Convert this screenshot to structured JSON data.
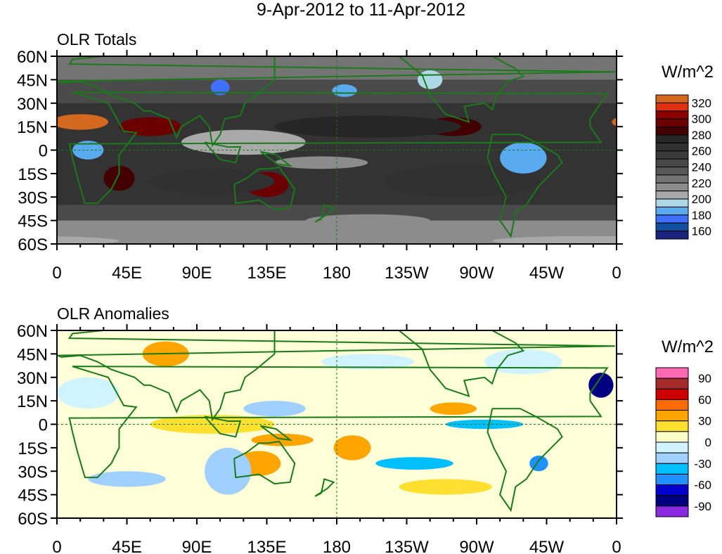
{
  "title": "9-Apr-2012 to 11-Apr-2012",
  "chart_data": [
    {
      "type": "heatmap",
      "title": "OLR Totals",
      "units": "W/m^2",
      "x_ticks": [
        "0",
        "45E",
        "90E",
        "135E",
        "180",
        "135W",
        "90W",
        "45W",
        "0"
      ],
      "y_ticks": [
        "60N",
        "45N",
        "30N",
        "15N",
        "0",
        "15S",
        "30S",
        "45S",
        "60S"
      ],
      "xlim": [
        0,
        360
      ],
      "ylim": [
        -60,
        60
      ],
      "colorbar": {
        "labels": [
          "320",
          "300",
          "280",
          "260",
          "240",
          "220",
          "200",
          "180",
          "160"
        ],
        "levels": [
          320,
          310,
          300,
          290,
          280,
          270,
          260,
          250,
          240,
          230,
          220,
          210,
          200,
          190,
          180,
          170,
          160
        ],
        "colors": [
          "#d2691e",
          "#e03010",
          "#8b0000",
          "#6a0000",
          "#420000",
          "#262626",
          "#303030",
          "#3a3a3a",
          "#484848",
          "#585858",
          "#747474",
          "#8c8c8c",
          "#a9a9a9",
          "#add8e6",
          "#5aaaf0",
          "#4070ff",
          "#10509e",
          "#1a2380"
        ]
      },
      "background": "#4a4a4a",
      "features": [
        {
          "lon": 15,
          "lat": 18,
          "rl": 18,
          "rt": 5,
          "v": 320
        },
        {
          "lon": 60,
          "lat": 15,
          "rl": 20,
          "rt": 6,
          "v": 290
        },
        {
          "lon": 255,
          "lat": 15,
          "rl": 18,
          "rt": 6,
          "v": 285
        },
        {
          "lon": 135,
          "lat": -22,
          "rl": 14,
          "rt": 8,
          "v": 290
        },
        {
          "lon": 40,
          "lat": -18,
          "rl": 10,
          "rt": 8,
          "v": 285
        },
        {
          "lon": 200,
          "lat": 15,
          "rl": 60,
          "rt": 7,
          "v": 270
        },
        {
          "lon": 100,
          "lat": -20,
          "rl": 40,
          "rt": 8,
          "v": 265
        },
        {
          "lon": 260,
          "lat": -20,
          "rl": 50,
          "rt": 10,
          "v": 265
        },
        {
          "lon": 120,
          "lat": 5,
          "rl": 40,
          "rt": 8,
          "v": 205
        },
        {
          "lon": 170,
          "lat": -8,
          "rl": 30,
          "rt": 4,
          "v": 215
        },
        {
          "lon": 300,
          "lat": -5,
          "rl": 15,
          "rt": 10,
          "v": 185
        },
        {
          "lon": 20,
          "lat": 0,
          "rl": 10,
          "rt": 6,
          "v": 180
        },
        {
          "lon": 105,
          "lat": 40,
          "rl": 6,
          "rt": 5,
          "v": 175
        },
        {
          "lon": 185,
          "lat": 38,
          "rl": 8,
          "rt": 4,
          "v": 180
        },
        {
          "lon": 240,
          "lat": 45,
          "rl": 8,
          "rt": 6,
          "v": 190
        },
        {
          "lon": 90,
          "lat": -50,
          "rl": 50,
          "rt": 4,
          "v": 210
        },
        {
          "lon": 200,
          "lat": -45,
          "rl": 40,
          "rt": 4,
          "v": 215
        },
        {
          "lon": 340,
          "lat": -58,
          "rl": 60,
          "rt": 3,
          "v": 200
        }
      ]
    },
    {
      "type": "heatmap",
      "title": "OLR Anomalies",
      "units": "W/m^2",
      "x_ticks": [
        "0",
        "45E",
        "90E",
        "135E",
        "180",
        "135W",
        "90W",
        "45W",
        "0"
      ],
      "y_ticks": [
        "60N",
        "45N",
        "30N",
        "15N",
        "0",
        "15S",
        "30S",
        "45S",
        "60S"
      ],
      "xlim": [
        0,
        360
      ],
      "ylim": [
        -60,
        60
      ],
      "colorbar": {
        "labels": [
          "90",
          "60",
          "30",
          "0",
          "-30",
          "-60",
          "-90"
        ],
        "levels": [
          90,
          75,
          60,
          45,
          30,
          15,
          0,
          -15,
          -30,
          -45,
          -60,
          -75,
          -90
        ],
        "colors": [
          "#ff69b4",
          "#a52a2a",
          "#cd0000",
          "#ff6a00",
          "#ffa500",
          "#ffe030",
          "#ffffcc",
          "#d0f4ff",
          "#9fd0ff",
          "#00bfff",
          "#1e90ff",
          "#0000cd",
          "#000080",
          "#8a2be2"
        ]
      },
      "background": "#ffffd8",
      "features": [
        {
          "lon": 70,
          "lat": 45,
          "rl": 15,
          "rt": 8,
          "v": 40
        },
        {
          "lon": 130,
          "lat": -25,
          "rl": 14,
          "rt": 8,
          "v": 35
        },
        {
          "lon": 145,
          "lat": -10,
          "rl": 20,
          "rt": 4,
          "v": 40
        },
        {
          "lon": 190,
          "lat": -15,
          "rl": 12,
          "rt": 8,
          "v": 30
        },
        {
          "lon": 250,
          "lat": -40,
          "rl": 30,
          "rt": 5,
          "v": 25
        },
        {
          "lon": 255,
          "lat": 10,
          "rl": 15,
          "rt": 4,
          "v": 30
        },
        {
          "lon": 100,
          "lat": 0,
          "rl": 40,
          "rt": 6,
          "v": 20
        },
        {
          "lon": 350,
          "lat": 25,
          "rl": 8,
          "rt": 8,
          "v": -90
        },
        {
          "lon": 275,
          "lat": 0,
          "rl": 25,
          "rt": 3,
          "v": -45
        },
        {
          "lon": 310,
          "lat": -25,
          "rl": 6,
          "rt": 5,
          "v": -60
        },
        {
          "lon": 140,
          "lat": 10,
          "rl": 20,
          "rt": 5,
          "v": -30
        },
        {
          "lon": 200,
          "lat": 40,
          "rl": 30,
          "rt": 5,
          "v": -10
        },
        {
          "lon": 45,
          "lat": -35,
          "rl": 25,
          "rt": 5,
          "v": -25
        },
        {
          "lon": 110,
          "lat": -30,
          "rl": 15,
          "rt": 15,
          "v": -20
        },
        {
          "lon": 230,
          "lat": -25,
          "rl": 25,
          "rt": 4,
          "v": -35
        },
        {
          "lon": 20,
          "lat": 20,
          "rl": 20,
          "rt": 10,
          "v": -10
        },
        {
          "lon": 300,
          "lat": 40,
          "rl": 25,
          "rt": 8,
          "v": -8
        }
      ]
    }
  ]
}
